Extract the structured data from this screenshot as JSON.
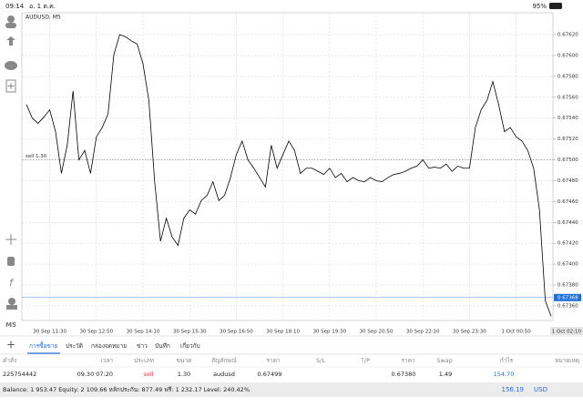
{
  "status_bar": {
    "time": "09:14",
    "date": "อ. 1 ต.ค.",
    "battery": "95%"
  },
  "sidebar": {
    "timeframe": "M5"
  },
  "chart_data": {
    "type": "line",
    "title": "AUDUSD, M5",
    "categories": [
      null,
      null,
      null,
      null,
      "30 Sep 11:30",
      null,
      null,
      null,
      null,
      null,
      null,
      null,
      "30 Sep 12:50",
      null,
      null,
      null,
      null,
      null,
      null,
      null,
      "30 Sep 14:10",
      null,
      null,
      null,
      null,
      null,
      null,
      null,
      "30 Sep 15:30",
      null,
      null,
      null,
      null,
      null,
      null,
      null,
      "30 Sep 16:50",
      null,
      null,
      null,
      null,
      null,
      null,
      null,
      "30 Sep 18:10",
      null,
      null,
      null,
      null,
      null,
      null,
      null,
      "30 Sep 19:30",
      null,
      null,
      null,
      null,
      null,
      null,
      null,
      "30 Sep 20:50",
      null,
      null,
      null,
      null,
      null,
      null,
      null,
      "30 Sep 22:10",
      null,
      null,
      null,
      null,
      null,
      null,
      null,
      "30 Sep 23:30",
      null,
      null,
      null,
      null,
      null,
      null,
      null,
      "1 Oct 00:50",
      null,
      null,
      null,
      null,
      null,
      "1 Oct 02:10"
    ],
    "series": [
      {
        "name": "AUDUSD",
        "color": "#000000",
        "values": [
          0.67553,
          0.6754,
          0.67535,
          0.67541,
          0.67548,
          0.67527,
          0.67487,
          0.67514,
          0.67566,
          0.675,
          0.67509,
          0.67487,
          0.67522,
          0.67531,
          0.67544,
          0.67601,
          0.6762,
          0.67618,
          0.67614,
          0.67611,
          0.67592,
          0.67557,
          0.67479,
          0.67422,
          0.67444,
          0.67426,
          0.67418,
          0.67444,
          0.67452,
          0.67448,
          0.67461,
          0.67466,
          0.67479,
          0.67461,
          0.67466,
          0.67483,
          0.67505,
          0.67518,
          0.675,
          0.67492,
          0.67483,
          0.67474,
          0.67514,
          0.67492,
          0.67505,
          0.67518,
          0.67509,
          0.67487,
          0.67492,
          0.67492,
          0.67489,
          0.67486,
          0.67492,
          0.67483,
          0.67487,
          0.67479,
          0.67483,
          0.6748,
          0.67479,
          0.67483,
          0.6748,
          0.67479,
          0.67483,
          0.67486,
          0.67487,
          0.67489,
          0.67492,
          0.67494,
          0.675,
          0.67492,
          0.67493,
          0.67492,
          0.67496,
          0.67489,
          0.67494,
          0.67492,
          0.67492,
          0.67531,
          0.67548,
          0.67557,
          0.67575,
          0.67553,
          0.67527,
          0.67531,
          0.67522,
          0.67518,
          0.67509,
          0.67492,
          0.67452,
          0.67365,
          0.6735
        ]
      }
    ],
    "ylim": [
      0.67346,
      0.67641
    ],
    "yticks": [
      {
        "value": 0.6762,
        "label": "0.67620"
      },
      {
        "value": 0.676,
        "label": "0.67600"
      },
      {
        "value": 0.6758,
        "label": "0.67580"
      },
      {
        "value": 0.6756,
        "label": "0.67560"
      },
      {
        "value": 0.6754,
        "label": "0.67540"
      },
      {
        "value": 0.6752,
        "label": "0.67520"
      },
      {
        "value": 0.675,
        "label": "0.67500"
      },
      {
        "value": 0.6748,
        "label": "0.67480"
      },
      {
        "value": 0.6746,
        "label": "0.67460"
      },
      {
        "value": 0.6744,
        "label": "0.67440"
      },
      {
        "value": 0.6742,
        "label": "0.67420"
      },
      {
        "value": 0.674,
        "label": "0.67400"
      },
      {
        "value": 0.6738,
        "label": "0.67380"
      },
      {
        "value": 0.6736,
        "label": "0.67360"
      }
    ],
    "order_line": {
      "label": "sell 1.30",
      "value": 0.675
    },
    "current_price": 0.67368,
    "current_price_color": "#1e6fd9",
    "grid": true
  },
  "tabs": [
    "การซื้อขาย",
    "ประวัติ",
    "กล่องจดหมาย",
    "ข่าว",
    "บันทึก",
    "เกี่ยวกับ"
  ],
  "table": {
    "headers": [
      "คำสั่ง",
      "เวลา",
      "ประเภท",
      "ขนาด",
      "สัญลักษณ์",
      "ราคา",
      "S/L",
      "T/P",
      "ราคา",
      "Swap",
      "กำไร",
      "หมายเหตุ"
    ],
    "rows": [
      {
        "order": "225754442",
        "time": "09.30 07:20",
        "type": "sell",
        "volume": "1.30",
        "symbol": "audusd",
        "open_price": "0.67499",
        "price": "0.67380",
        "swap": "1.49",
        "profit": "154.70"
      }
    ]
  },
  "footer": {
    "summary": "Balance: 1 953.47 Equity: 2 109.66 หลักประกัน: 877.49 ฟรี: 1 232.17 Level: 240.42%",
    "profit": "156.19",
    "currency": "USD"
  }
}
